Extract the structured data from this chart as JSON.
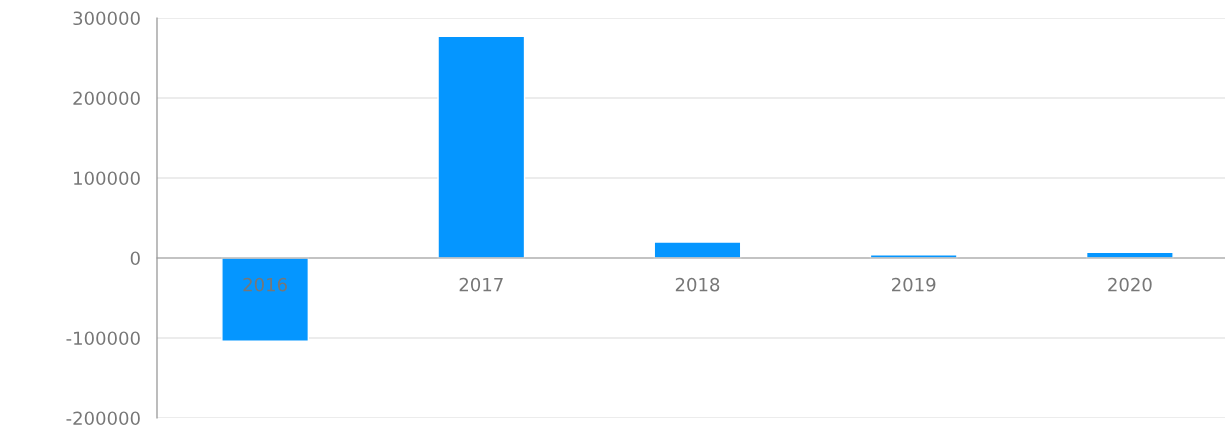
{
  "chart_data": {
    "type": "bar",
    "categories": [
      "2016",
      "2017",
      "2018",
      "2019",
      "2020"
    ],
    "values": [
      -104000,
      277000,
      20000,
      4000,
      7000
    ],
    "color": "#0596ff",
    "ylim": [
      -200000,
      300000
    ],
    "yticks": [
      -200000,
      -100000,
      0,
      100000,
      200000,
      300000
    ],
    "grid": "y",
    "legend": false
  }
}
